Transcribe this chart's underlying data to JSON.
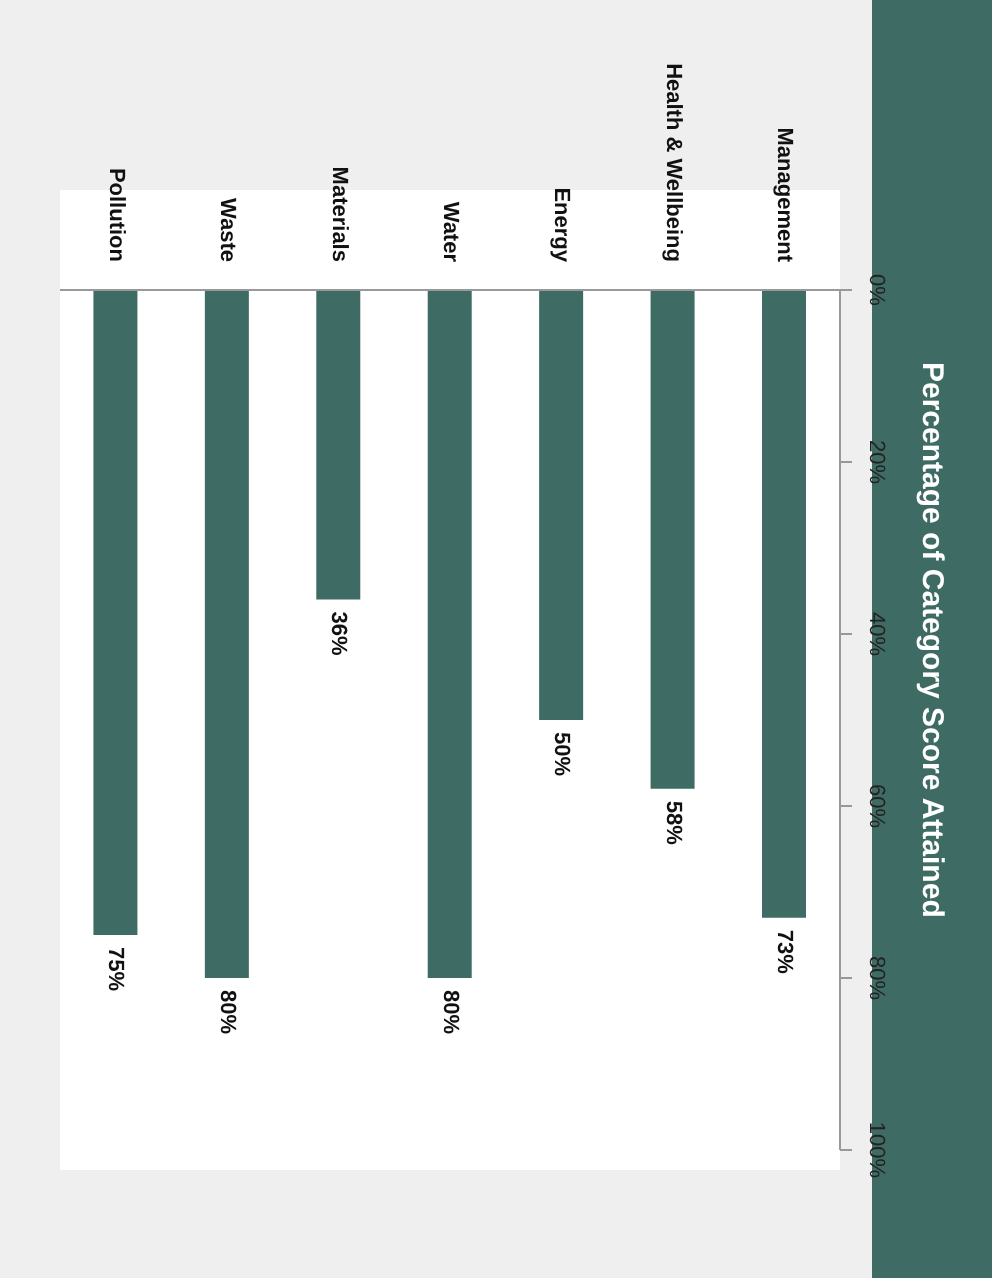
{
  "chart_data": {
    "type": "bar",
    "title": "Percentage of Category Score Attained",
    "categories": [
      "Pollution",
      "Waste",
      "Materials",
      "Water",
      "Energy",
      "Health & Wellbeing",
      "Management"
    ],
    "values": [
      75,
      80,
      36,
      80,
      50,
      58,
      73
    ],
    "value_labels": [
      "75%",
      "80%",
      "36%",
      "80%",
      "50%",
      "58%",
      "73%"
    ],
    "color": "#3e6b63",
    "ylim": [
      100,
      0
    ],
    "yticks": [
      {
        "value": 0,
        "label": "0%"
      },
      {
        "value": 20,
        "label": "20%"
      },
      {
        "value": 40,
        "label": "40%"
      },
      {
        "value": 60,
        "label": "60%"
      },
      {
        "value": 80,
        "label": "80%"
      },
      {
        "value": 100,
        "label": "100%"
      }
    ],
    "grid": false,
    "legend": false
  }
}
